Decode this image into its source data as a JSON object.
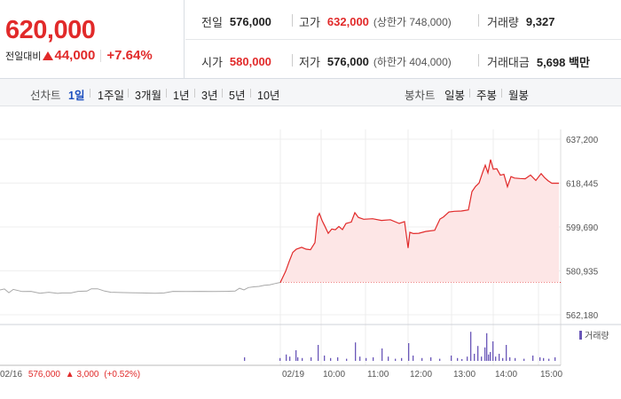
{
  "price": {
    "current": "620,000",
    "change_label": "전일대비",
    "change_amount": "44,000",
    "change_percent": "+7.64%"
  },
  "summary": {
    "prev_close": {
      "label": "전일",
      "value": "576,000"
    },
    "high": {
      "label": "고가",
      "value": "632,000",
      "sub": "(상한가 748,000)"
    },
    "volume": {
      "label": "거래량",
      "value": "9,327"
    },
    "open": {
      "label": "시가",
      "value": "580,000"
    },
    "low": {
      "label": "저가",
      "value": "576,000",
      "sub": "(하한가 404,000)"
    },
    "trade_value": {
      "label": "거래대금",
      "value": "5,698 백만"
    }
  },
  "line_chart_tabs": {
    "label": "선차트",
    "items": [
      "1일",
      "1주일",
      "3개월",
      "1년",
      "3년",
      "5년",
      "10년"
    ],
    "active": "1일"
  },
  "candle_chart_tabs": {
    "label": "봉차트",
    "items": [
      "일봉",
      "주봉",
      "월봉"
    ]
  },
  "colors": {
    "up": "#e12a2a",
    "area_fill": "#fde6e6",
    "prev_line": "#a8a8a8",
    "volume_bar": "#6a57b8",
    "active_tab": "#1d4fbf"
  },
  "chart_data": {
    "type": "line",
    "y_ticks": [
      "637,200",
      "618,445",
      "599,690",
      "580,935",
      "562,180"
    ],
    "ylim": [
      562180,
      637200
    ],
    "x_labels": [
      "02/19",
      "10:00",
      "11:00",
      "12:00",
      "13:00",
      "14:00",
      "15:00"
    ],
    "prev_day": {
      "date": "02/16",
      "price": "576,000",
      "change": "3,000",
      "change_pct": "(+0.52%)"
    },
    "volume_legend": "거래량",
    "baseline": 576000,
    "prev_day_series": [
      [
        0,
        572800
      ],
      [
        5,
        573200
      ],
      [
        10,
        571600
      ],
      [
        15,
        573000
      ],
      [
        25,
        572100
      ],
      [
        35,
        572200
      ],
      [
        45,
        571400
      ],
      [
        55,
        571800
      ],
      [
        65,
        571300
      ],
      [
        70,
        571500
      ],
      [
        80,
        571500
      ],
      [
        88,
        572200
      ],
      [
        98,
        572300
      ],
      [
        103,
        573300
      ],
      [
        110,
        573300
      ],
      [
        118,
        572300
      ],
      [
        125,
        571800
      ],
      [
        135,
        571700
      ],
      [
        145,
        571600
      ],
      [
        160,
        571500
      ],
      [
        175,
        571400
      ],
      [
        185,
        571500
      ],
      [
        195,
        572200
      ],
      [
        210,
        572100
      ],
      [
        225,
        572200
      ],
      [
        240,
        572100
      ],
      [
        255,
        572200
      ],
      [
        265,
        572300
      ],
      [
        270,
        573500
      ],
      [
        275,
        572800
      ],
      [
        280,
        573800
      ],
      [
        286,
        574100
      ],
      [
        292,
        574300
      ],
      [
        298,
        574800
      ],
      [
        304,
        575000
      ],
      [
        310,
        575500
      ],
      [
        316,
        576000
      ]
    ],
    "today_series": [
      [
        316,
        576000
      ],
      [
        322,
        580800
      ],
      [
        326,
        585000
      ],
      [
        330,
        588800
      ],
      [
        334,
        590200
      ],
      [
        340,
        591000
      ],
      [
        345,
        590200
      ],
      [
        350,
        590000
      ],
      [
        355,
        593000
      ],
      [
        358,
        604000
      ],
      [
        360,
        605500
      ],
      [
        363,
        602500
      ],
      [
        366,
        600200
      ],
      [
        370,
        597000
      ],
      [
        374,
        598800
      ],
      [
        378,
        598500
      ],
      [
        382,
        599900
      ],
      [
        386,
        598600
      ],
      [
        390,
        601200
      ],
      [
        396,
        601800
      ],
      [
        400,
        605800
      ],
      [
        404,
        603800
      ],
      [
        410,
        603000
      ],
      [
        420,
        603200
      ],
      [
        430,
        602500
      ],
      [
        440,
        602800
      ],
      [
        450,
        601200
      ],
      [
        456,
        602000
      ],
      [
        460,
        590700
      ],
      [
        462,
        597400
      ],
      [
        466,
        596900
      ],
      [
        472,
        597000
      ],
      [
        480,
        597800
      ],
      [
        490,
        598300
      ],
      [
        496,
        603100
      ],
      [
        500,
        604000
      ],
      [
        506,
        606100
      ],
      [
        512,
        606400
      ],
      [
        520,
        606500
      ],
      [
        528,
        607000
      ],
      [
        532,
        614800
      ],
      [
        536,
        617000
      ],
      [
        540,
        618500
      ],
      [
        544,
        623000
      ],
      [
        547,
        626100
      ],
      [
        550,
        622800
      ],
      [
        553,
        628500
      ],
      [
        556,
        624400
      ],
      [
        560,
        624600
      ],
      [
        564,
        621800
      ],
      [
        568,
        622200
      ],
      [
        572,
        616900
      ],
      [
        576,
        621200
      ],
      [
        580,
        620600
      ],
      [
        586,
        620400
      ],
      [
        592,
        620300
      ],
      [
        598,
        621900
      ],
      [
        604,
        619600
      ],
      [
        610,
        622500
      ],
      [
        614,
        620700
      ],
      [
        618,
        619400
      ],
      [
        622,
        618400
      ],
      [
        630,
        618400
      ]
    ],
    "volume_bars": [
      [
        275,
        0.1
      ],
      [
        315,
        0.08
      ],
      [
        322,
        0.18
      ],
      [
        326,
        0.12
      ],
      [
        333,
        0.3
      ],
      [
        335,
        0.1
      ],
      [
        340,
        0.08
      ],
      [
        350,
        0.1
      ],
      [
        358,
        0.45
      ],
      [
        365,
        0.15
      ],
      [
        372,
        0.08
      ],
      [
        380,
        0.1
      ],
      [
        390,
        0.06
      ],
      [
        400,
        0.52
      ],
      [
        405,
        0.12
      ],
      [
        412,
        0.08
      ],
      [
        420,
        0.1
      ],
      [
        430,
        0.35
      ],
      [
        437,
        0.12
      ],
      [
        445,
        0.06
      ],
      [
        452,
        0.08
      ],
      [
        460,
        0.5
      ],
      [
        465,
        0.15
      ],
      [
        475,
        0.08
      ],
      [
        485,
        0.1
      ],
      [
        495,
        0.06
      ],
      [
        508,
        0.15
      ],
      [
        515,
        0.08
      ],
      [
        520,
        0.05
      ],
      [
        526,
        0.12
      ],
      [
        530,
        0.82
      ],
      [
        534,
        0.2
      ],
      [
        538,
        0.42
      ],
      [
        542,
        0.12
      ],
      [
        546,
        0.38
      ],
      [
        548,
        0.78
      ],
      [
        550,
        0.18
      ],
      [
        552,
        0.25
      ],
      [
        555,
        0.55
      ],
      [
        558,
        0.12
      ],
      [
        562,
        0.2
      ],
      [
        566,
        0.08
      ],
      [
        570,
        0.45
      ],
      [
        574,
        0.1
      ],
      [
        580,
        0.08
      ],
      [
        590,
        0.06
      ],
      [
        600,
        0.15
      ],
      [
        608,
        0.1
      ],
      [
        612,
        0.08
      ],
      [
        618,
        0.06
      ],
      [
        625,
        0.1
      ]
    ]
  }
}
